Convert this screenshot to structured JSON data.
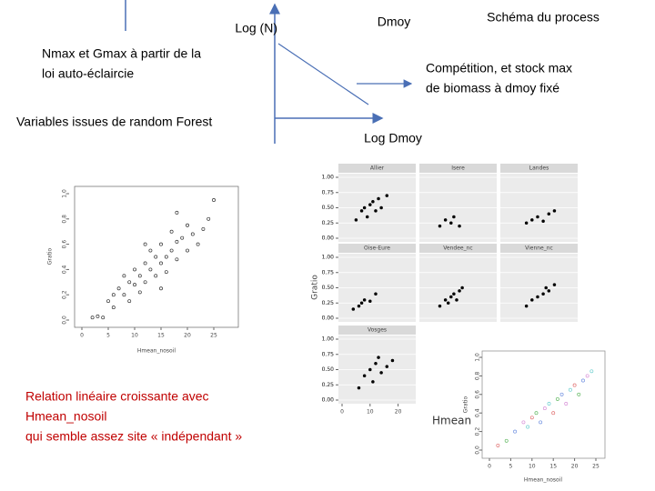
{
  "diagram": {
    "log_n": "Log (N)",
    "dmoy": "Dmoy",
    "log_dmoy": "Log Dmoy",
    "process_title": "Schéma du process",
    "competition": [
      "Compétition, et stock max",
      "de biomass à dmoy fixé"
    ]
  },
  "notes": {
    "thinning": [
      "Nmax et Gmax à partir de la",
      "loi auto-éclaircie"
    ],
    "random_forest": "Variables issues de random Forest",
    "relation": [
      "Relation linéaire croissante avec",
      "Hmean_nosoil",
      "qui semble assez site « indépendant »"
    ]
  },
  "plot_main": {
    "type": "scatter",
    "x_label": "Hmean_nosoil",
    "y_label": "Gratio",
    "xlim": [
      0,
      25
    ],
    "ylim": [
      0,
      1
    ],
    "xticks": [
      0,
      5,
      10,
      15,
      20,
      25
    ],
    "yticks": [
      {
        "value": 0,
        "label": "0.0"
      },
      {
        "value": 0.2,
        "label": "0.2"
      },
      {
        "value": 0.4,
        "label": "0.4"
      },
      {
        "value": 0.6,
        "label": "0.6"
      },
      {
        "value": 0.8,
        "label": "0.8"
      },
      {
        "value": 1,
        "label": "1.0"
      }
    ],
    "x": [
      2,
      3,
      4,
      5,
      6,
      6,
      7,
      8,
      8,
      9,
      10,
      10,
      11,
      11,
      12,
      12,
      13,
      13,
      14,
      14,
      15,
      15,
      16,
      16,
      17,
      17,
      18,
      18,
      19,
      20,
      20,
      21,
      22,
      23,
      24,
      25,
      9,
      12,
      15,
      18
    ],
    "y": [
      0.02,
      0.03,
      0.02,
      0.15,
      0.2,
      0.1,
      0.25,
      0.2,
      0.35,
      0.3,
      0.28,
      0.4,
      0.35,
      0.22,
      0.45,
      0.3,
      0.4,
      0.55,
      0.35,
      0.5,
      0.45,
      0.6,
      0.5,
      0.38,
      0.55,
      0.7,
      0.48,
      0.62,
      0.65,
      0.55,
      0.75,
      0.68,
      0.6,
      0.72,
      0.8,
      0.95,
      0.15,
      0.6,
      0.25,
      0.85
    ]
  },
  "plot_facets": {
    "type": "scatter",
    "y_label": "Gratio",
    "xlim": [
      0,
      25
    ],
    "ylim": [
      0,
      1
    ],
    "xticks": [
      0,
      10,
      20
    ],
    "yticks": [
      {
        "value": 0,
        "label": "0.00"
      },
      {
        "value": 0.25,
        "label": "0.25"
      },
      {
        "value": 0.5,
        "label": "0.50"
      },
      {
        "value": 0.75,
        "label": "0.75"
      },
      {
        "value": 1,
        "label": "1.00"
      }
    ],
    "panels": [
      {
        "name": "Allier",
        "x": [
          5,
          7,
          8,
          9,
          10,
          11,
          12,
          13,
          14,
          16
        ],
        "y": [
          0.3,
          0.45,
          0.5,
          0.35,
          0.55,
          0.6,
          0.45,
          0.65,
          0.5,
          0.7
        ]
      },
      {
        "name": "Isere",
        "x": [
          6,
          8,
          10,
          11,
          13
        ],
        "y": [
          0.2,
          0.3,
          0.25,
          0.35,
          0.2
        ]
      },
      {
        "name": "Landes",
        "x": [
          8,
          10,
          12,
          14,
          16,
          18
        ],
        "y": [
          0.25,
          0.3,
          0.35,
          0.28,
          0.4,
          0.45
        ]
      },
      {
        "name": "Oise-Eure",
        "x": [
          4,
          6,
          7,
          8,
          10,
          12
        ],
        "y": [
          0.15,
          0.2,
          0.25,
          0.3,
          0.28,
          0.4
        ]
      },
      {
        "name": "Vendee_nc",
        "x": [
          6,
          8,
          9,
          10,
          11,
          12,
          13,
          14
        ],
        "y": [
          0.2,
          0.3,
          0.25,
          0.35,
          0.4,
          0.3,
          0.45,
          0.5
        ]
      },
      {
        "name": "Vienne_nc",
        "x": [
          8,
          10,
          12,
          14,
          15,
          16,
          18
        ],
        "y": [
          0.2,
          0.3,
          0.35,
          0.4,
          0.5,
          0.45,
          0.55
        ]
      },
      {
        "name": "Vosges",
        "x": [
          6,
          8,
          10,
          11,
          12,
          13,
          14,
          16,
          18
        ],
        "y": [
          0.2,
          0.4,
          0.5,
          0.3,
          0.6,
          0.7,
          0.45,
          0.55,
          0.65
        ]
      }
    ]
  },
  "plot_color": {
    "type": "scatter",
    "legend_label": "Hmean",
    "x_label": "Hmean_nosoil",
    "y_label": "Gratio",
    "xlim": [
      0,
      25
    ],
    "ylim": [
      0,
      1
    ],
    "xticks": [
      0,
      5,
      10,
      15,
      20,
      25
    ],
    "yticks": [
      {
        "value": 0,
        "label": "0.0"
      },
      {
        "value": 0.2,
        "label": "0.2"
      },
      {
        "value": 0.4,
        "label": "0.4"
      },
      {
        "value": 0.6,
        "label": "0.6"
      },
      {
        "value": 0.8,
        "label": "0.8"
      },
      {
        "value": 1,
        "label": "1.0"
      }
    ],
    "colors": [
      "#e07070",
      "#60b860",
      "#7090e0",
      "#d890d8",
      "#70d0d0"
    ],
    "x": [
      2,
      4,
      6,
      8,
      9,
      10,
      11,
      12,
      13,
      14,
      15,
      16,
      17,
      18,
      19,
      20,
      21,
      22,
      23,
      24
    ],
    "y": [
      0.05,
      0.1,
      0.2,
      0.3,
      0.25,
      0.35,
      0.4,
      0.3,
      0.45,
      0.5,
      0.4,
      0.55,
      0.6,
      0.5,
      0.65,
      0.7,
      0.6,
      0.75,
      0.8,
      0.85
    ]
  }
}
